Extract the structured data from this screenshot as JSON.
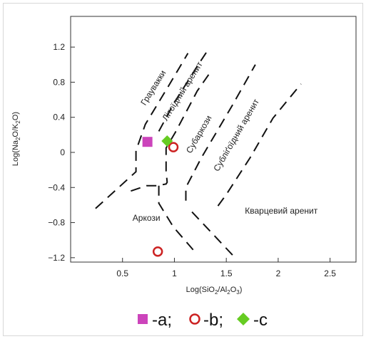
{
  "chart_data": {
    "type": "scatter",
    "xlabel": "Log(SiO2/Al2O3)",
    "ylabel": "Log(Na2O/K2O)",
    "xlim": [
      0.0,
      2.75
    ],
    "ylim": [
      -1.25,
      1.55
    ],
    "x_ticks": [
      0.5,
      1,
      1.5,
      2,
      2.5
    ],
    "y_ticks": [
      1.2,
      0.8,
      0.4,
      0,
      -0.4,
      -0.8,
      -1.2
    ],
    "x_tick_labels": [
      "0.5",
      "1",
      "1.5",
      "2",
      "2.5"
    ],
    "y_tick_labels": [
      "1.2",
      "0.8",
      "0.4",
      "0",
      "−0.4",
      "−0.8",
      "−1.2"
    ],
    "grid": false,
    "series": [
      {
        "name": "-a",
        "marker": "square",
        "color": "#cc44bb",
        "points": [
          {
            "x": 0.74,
            "y": 0.12
          }
        ]
      },
      {
        "name": "-b",
        "marker": "circle-open",
        "color": "#cc2222",
        "points": [
          {
            "x": 0.99,
            "y": 0.06
          },
          {
            "x": 0.84,
            "y": -1.13
          }
        ]
      },
      {
        "name": "-c",
        "marker": "diamond",
        "color": "#66cc22",
        "points": [
          {
            "x": 0.93,
            "y": 0.13
          }
        ]
      }
    ],
    "region_labels": [
      {
        "text": "Граувакки",
        "x": 0.82,
        "y": 0.72,
        "angle": -58
      },
      {
        "text": "Літоїдний аренит",
        "x": 1.1,
        "y": 0.68,
        "angle": -58
      },
      {
        "text": "Субаркози",
        "x": 1.26,
        "y": 0.19,
        "angle": -60
      },
      {
        "text": "Субліґоїдний аренит",
        "x": 1.62,
        "y": 0.18,
        "angle": -60
      },
      {
        "text": "Аркози",
        "x": 0.73,
        "y": -0.78,
        "angle": 0
      },
      {
        "text": "Кварцевий аренит",
        "x": 2.03,
        "y": -0.7,
        "angle": 0
      }
    ],
    "boundaries": [
      {
        "name": "boundary-1",
        "points": [
          [
            0.24,
            -0.64
          ],
          [
            0.63,
            -0.22
          ],
          [
            0.63,
            0.02
          ],
          [
            0.72,
            0.32
          ],
          [
            0.94,
            0.75
          ],
          [
            1.13,
            1.13
          ]
        ]
      },
      {
        "name": "boundary-2",
        "points": [
          [
            0.85,
            0.24
          ],
          [
            1.0,
            0.57
          ],
          [
            1.23,
            1.0
          ],
          [
            1.33,
            1.18
          ]
        ]
      },
      {
        "name": "boundary-3",
        "points": [
          [
            0.58,
            -0.44
          ],
          [
            0.73,
            -0.38
          ],
          [
            0.83,
            -0.38
          ],
          [
            0.92,
            -0.36
          ],
          [
            0.93,
            -0.34
          ],
          [
            0.92,
            -0.21
          ],
          [
            0.92,
            0.05
          ],
          [
            1.01,
            0.23
          ],
          [
            1.22,
            0.7
          ],
          [
            1.35,
            0.92
          ]
        ]
      },
      {
        "name": "boundary-4",
        "points": [
          [
            0.85,
            -0.38
          ],
          [
            0.85,
            -0.58
          ],
          [
            0.99,
            -0.85
          ],
          [
            1.1,
            -1.0
          ],
          [
            1.21,
            -1.15
          ]
        ]
      },
      {
        "name": "boundary-5",
        "points": [
          [
            1.11,
            -0.55
          ],
          [
            1.11,
            -0.4
          ],
          [
            1.26,
            -0.06
          ],
          [
            1.55,
            0.52
          ],
          [
            1.78,
            1.0
          ]
        ]
      },
      {
        "name": "boundary-6",
        "points": [
          [
            1.56,
            -1.17
          ],
          [
            1.33,
            -0.88
          ],
          [
            1.13,
            -0.63
          ]
        ]
      },
      {
        "name": "boundary-7",
        "points": [
          [
            1.42,
            -0.61
          ],
          [
            1.5,
            -0.48
          ],
          [
            1.73,
            -0.06
          ],
          [
            1.95,
            0.39
          ],
          [
            2.22,
            0.78
          ]
        ]
      }
    ]
  },
  "legend": {
    "a_label": "-a;",
    "b_label": "-b;",
    "c_label": "-c"
  },
  "colors": {
    "a": "#cc44bb",
    "b": "#cc2222",
    "c": "#66cc22"
  }
}
